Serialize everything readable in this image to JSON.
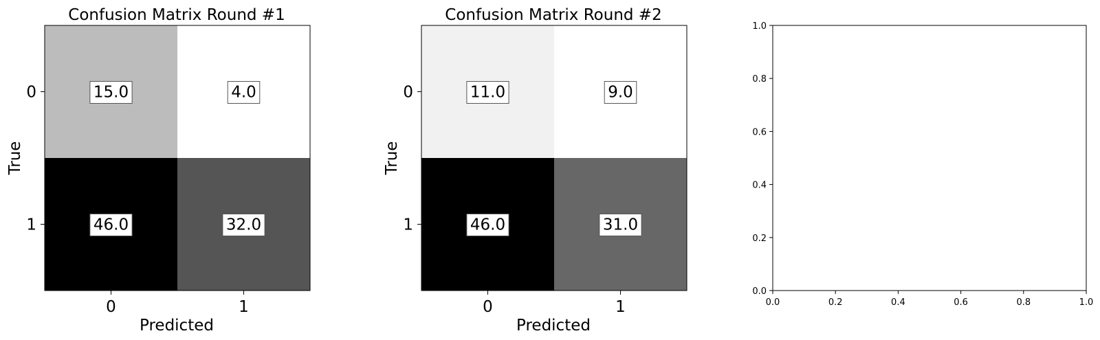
{
  "chart_data": [
    {
      "type": "heatmap",
      "title": "Confusion Matrix Round #1",
      "xlabel": "Predicted",
      "ylabel": "True",
      "x_ticks": [
        "0",
        "1"
      ],
      "y_ticks": [
        "0",
        "1"
      ],
      "matrix": [
        [
          15.0,
          4.0
        ],
        [
          46.0,
          32.0
        ]
      ],
      "labels": [
        [
          "15.0",
          "4.0"
        ],
        [
          "46.0",
          "32.0"
        ]
      ],
      "colormap": "gray_r"
    },
    {
      "type": "heatmap",
      "title": "Confusion Matrix Round #2",
      "xlabel": "Predicted",
      "ylabel": "True",
      "x_ticks": [
        "0",
        "1"
      ],
      "y_ticks": [
        "0",
        "1"
      ],
      "matrix": [
        [
          11.0,
          9.0
        ],
        [
          46.0,
          31.0
        ]
      ],
      "labels": [
        [
          "11.0",
          "9.0"
        ],
        [
          "46.0",
          "31.0"
        ]
      ],
      "colormap": "gray_r"
    },
    {
      "type": "scatter",
      "title": "",
      "xlabel": "",
      "ylabel": "",
      "xlim": [
        0.0,
        1.0
      ],
      "ylim": [
        0.0,
        1.0
      ],
      "x_ticks": [
        "0.0",
        "0.2",
        "0.4",
        "0.6",
        "0.8",
        "1.0"
      ],
      "y_ticks": [
        "0.0",
        "0.2",
        "0.4",
        "0.6",
        "0.8",
        "1.0"
      ],
      "series": []
    }
  ]
}
